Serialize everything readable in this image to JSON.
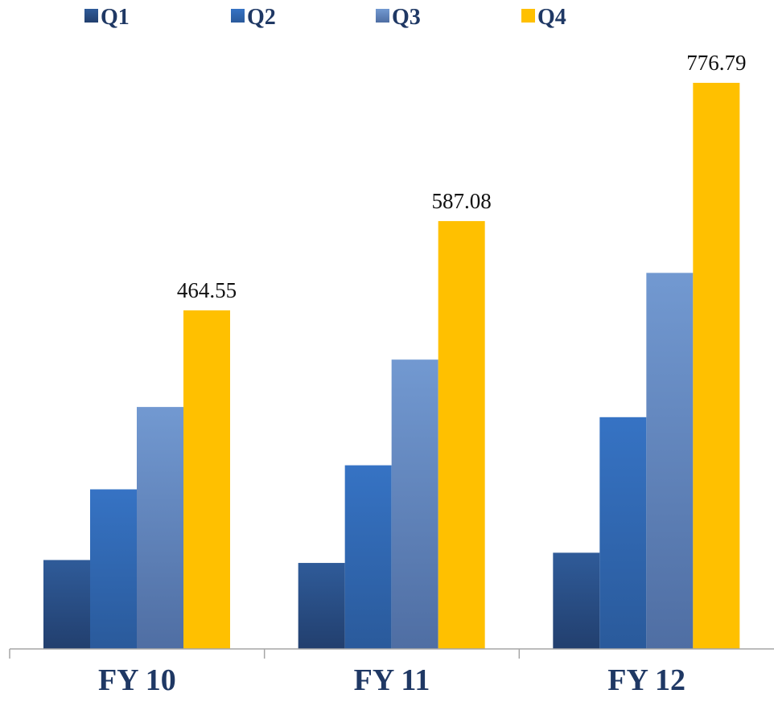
{
  "chart_data": {
    "type": "bar",
    "categories": [
      "FY 10",
      "FY 11",
      "FY 12"
    ],
    "series": [
      {
        "name": "Q1",
        "values": [
          122,
          118,
          132
        ],
        "color": "#2b4f88"
      },
      {
        "name": "Q2",
        "values": [
          219,
          252,
          318
        ],
        "color": "#3571c0"
      },
      {
        "name": "Q3",
        "values": [
          332,
          397,
          516
        ],
        "color": "#6b8fc6"
      },
      {
        "name": "Q4",
        "values": [
          464.55,
          587.08,
          776.79
        ],
        "color": "#ffc000"
      }
    ],
    "data_labels": [
      {
        "series": "Q4",
        "category": "FY 10",
        "text": "464.55"
      },
      {
        "series": "Q4",
        "category": "FY 11",
        "text": "587.08"
      },
      {
        "series": "Q4",
        "category": "FY 12",
        "text": "776.79"
      }
    ],
    "title": "",
    "xlabel": "",
    "ylabel": "",
    "ylim": [
      0,
      776.79
    ],
    "grid": false,
    "legend_position": "top-left"
  }
}
